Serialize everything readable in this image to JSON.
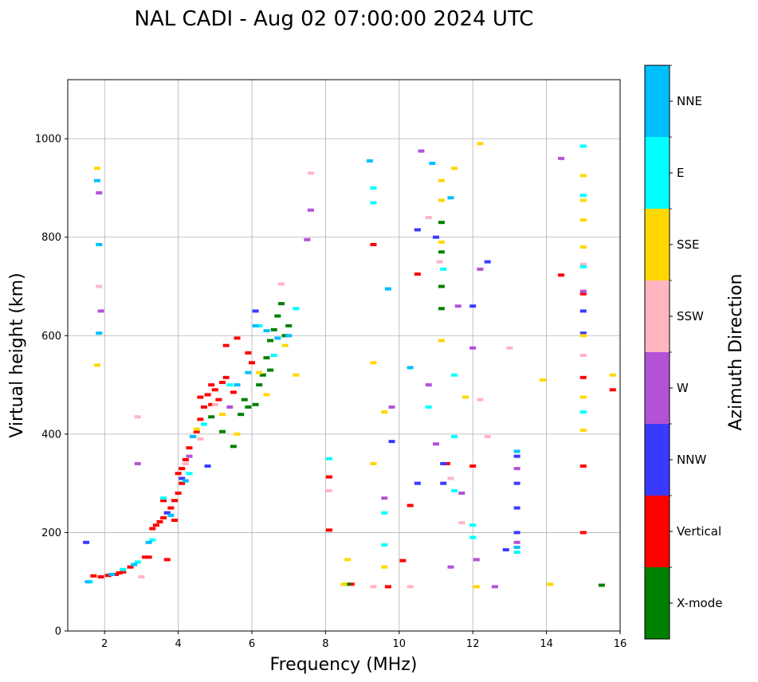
{
  "chart_data": {
    "type": "scatter",
    "title": "NAL CADI - Aug 02 07:00:00 2024 UTC",
    "xlabel": "Frequency (MHz)",
    "ylabel": "Virtual height (km)",
    "xlim": [
      1.0,
      16.0
    ],
    "ylim": [
      0,
      1120
    ],
    "xticks": [
      2,
      4,
      6,
      8,
      10,
      12,
      14,
      16
    ],
    "yticks": [
      0,
      200,
      400,
      600,
      800,
      1000
    ],
    "grid": true,
    "colorbar": {
      "label": "Azimuth Direction",
      "categories": [
        {
          "name": "X-mode",
          "color": "#008000"
        },
        {
          "name": "Vertical",
          "color": "#ff0000"
        },
        {
          "name": "NNW",
          "color": "#3a3aff"
        },
        {
          "name": "W",
          "color": "#b452d6"
        },
        {
          "name": "SSW",
          "color": "#ffb6c1"
        },
        {
          "name": "SSE",
          "color": "#ffd700"
        },
        {
          "name": "E",
          "color": "#00ffff"
        },
        {
          "name": "NNE",
          "color": "#00bfff"
        }
      ]
    },
    "series": [
      {
        "name": "Vertical",
        "color": "#ff0000",
        "points": [
          [
            1.7,
            112
          ],
          [
            1.9,
            110
          ],
          [
            2.1,
            113
          ],
          [
            2.3,
            115
          ],
          [
            2.4,
            118
          ],
          [
            2.5,
            120
          ],
          [
            2.7,
            130
          ],
          [
            3.1,
            150
          ],
          [
            3.2,
            150
          ],
          [
            3.3,
            208
          ],
          [
            3.4,
            215
          ],
          [
            3.5,
            222
          ],
          [
            3.6,
            230
          ],
          [
            3.7,
            240
          ],
          [
            3.8,
            250
          ],
          [
            3.9,
            265
          ],
          [
            4.0,
            280
          ],
          [
            4.1,
            300
          ],
          [
            3.6,
            265
          ],
          [
            4.0,
            320
          ],
          [
            4.1,
            330
          ],
          [
            4.2,
            348
          ],
          [
            4.3,
            372
          ],
          [
            4.5,
            405
          ],
          [
            4.6,
            430
          ],
          [
            4.7,
            455
          ],
          [
            4.8,
            480
          ],
          [
            4.9,
            500
          ],
          [
            5.0,
            490
          ],
          [
            5.1,
            470
          ],
          [
            5.2,
            505
          ],
          [
            5.3,
            515
          ],
          [
            4.4,
            395
          ],
          [
            4.6,
            475
          ],
          [
            4.9,
            460
          ],
          [
            5.3,
            580
          ],
          [
            5.5,
            485
          ],
          [
            5.6,
            595
          ],
          [
            5.9,
            565
          ],
          [
            6.0,
            545
          ],
          [
            3.9,
            225
          ],
          [
            3.7,
            145
          ],
          [
            8.1,
            313
          ],
          [
            8.1,
            205
          ],
          [
            8.7,
            95
          ],
          [
            9.3,
            785
          ],
          [
            9.7,
            90
          ],
          [
            10.1,
            143
          ],
          [
            10.3,
            255
          ],
          [
            10.5,
            725
          ],
          [
            11.3,
            340
          ],
          [
            12.0,
            335
          ],
          [
            14.4,
            723
          ],
          [
            15.0,
            685
          ],
          [
            15.0,
            515
          ],
          [
            15.0,
            335
          ],
          [
            15.0,
            200
          ],
          [
            15.8,
            490
          ]
        ]
      },
      {
        "name": "X-mode",
        "color": "#008000",
        "points": [
          [
            4.9,
            435
          ],
          [
            5.2,
            405
          ],
          [
            5.5,
            375
          ],
          [
            5.7,
            440
          ],
          [
            5.8,
            470
          ],
          [
            5.9,
            455
          ],
          [
            6.1,
            460
          ],
          [
            6.3,
            520
          ],
          [
            6.4,
            555
          ],
          [
            6.5,
            590
          ],
          [
            6.6,
            612
          ],
          [
            6.7,
            640
          ],
          [
            6.8,
            665
          ],
          [
            6.9,
            600
          ],
          [
            6.2,
            500
          ],
          [
            6.5,
            530
          ],
          [
            7.0,
            620
          ],
          [
            11.15,
            655
          ],
          [
            11.15,
            700
          ],
          [
            11.15,
            770
          ],
          [
            11.15,
            830
          ],
          [
            8.6,
            95
          ],
          [
            15.5,
            93
          ]
        ]
      },
      {
        "name": "NNW",
        "color": "#3a3aff",
        "points": [
          [
            1.5,
            180
          ],
          [
            3.7,
            240
          ],
          [
            4.1,
            310
          ],
          [
            4.8,
            335
          ],
          [
            6.1,
            650
          ],
          [
            9.8,
            385
          ],
          [
            10.5,
            815
          ],
          [
            10.5,
            300
          ],
          [
            11.0,
            800
          ],
          [
            11.2,
            340
          ],
          [
            11.2,
            300
          ],
          [
            12.0,
            660
          ],
          [
            12.4,
            750
          ],
          [
            12.9,
            165
          ],
          [
            13.2,
            355
          ],
          [
            13.2,
            300
          ],
          [
            13.2,
            250
          ],
          [
            13.2,
            200
          ],
          [
            15.0,
            605
          ],
          [
            15.0,
            650
          ]
        ]
      },
      {
        "name": "W",
        "color": "#b452d6",
        "points": [
          [
            1.85,
            890
          ],
          [
            1.9,
            650
          ],
          [
            2.9,
            340
          ],
          [
            4.3,
            355
          ],
          [
            5.4,
            455
          ],
          [
            7.5,
            795
          ],
          [
            7.6,
            855
          ],
          [
            9.6,
            270
          ],
          [
            9.8,
            455
          ],
          [
            10.6,
            975
          ],
          [
            10.8,
            500
          ],
          [
            11.0,
            380
          ],
          [
            11.4,
            130
          ],
          [
            11.6,
            660
          ],
          [
            11.7,
            280
          ],
          [
            12.0,
            575
          ],
          [
            12.1,
            145
          ],
          [
            12.2,
            735
          ],
          [
            12.6,
            90
          ],
          [
            13.2,
            330
          ],
          [
            13.2,
            180
          ],
          [
            14.4,
            960
          ],
          [
            15.0,
            690
          ]
        ]
      },
      {
        "name": "SSW",
        "color": "#ffb6c1",
        "points": [
          [
            1.85,
            700
          ],
          [
            2.9,
            435
          ],
          [
            3.0,
            110
          ],
          [
            4.2,
            340
          ],
          [
            4.6,
            390
          ],
          [
            5.0,
            460
          ],
          [
            6.8,
            705
          ],
          [
            7.6,
            930
          ],
          [
            8.1,
            285
          ],
          [
            9.3,
            90
          ],
          [
            10.3,
            90
          ],
          [
            10.8,
            840
          ],
          [
            11.1,
            750
          ],
          [
            11.4,
            310
          ],
          [
            11.7,
            220
          ],
          [
            12.2,
            470
          ],
          [
            12.4,
            395
          ],
          [
            13.0,
            575
          ],
          [
            15.0,
            745
          ],
          [
            15.0,
            560
          ]
        ]
      },
      {
        "name": "SSE",
        "color": "#ffd700",
        "points": [
          [
            1.8,
            940
          ],
          [
            1.8,
            540
          ],
          [
            4.5,
            410
          ],
          [
            5.2,
            440
          ],
          [
            5.6,
            400
          ],
          [
            6.2,
            525
          ],
          [
            6.4,
            480
          ],
          [
            6.9,
            580
          ],
          [
            7.2,
            520
          ],
          [
            8.6,
            145
          ],
          [
            8.5,
            95
          ],
          [
            9.3,
            545
          ],
          [
            9.3,
            340
          ],
          [
            9.6,
            445
          ],
          [
            9.6,
            130
          ],
          [
            11.15,
            915
          ],
          [
            11.15,
            875
          ],
          [
            11.15,
            790
          ],
          [
            11.15,
            590
          ],
          [
            11.5,
            940
          ],
          [
            11.8,
            475
          ],
          [
            12.1,
            90
          ],
          [
            12.2,
            990
          ],
          [
            13.9,
            510
          ],
          [
            14.1,
            95
          ],
          [
            15.0,
            925
          ],
          [
            15.0,
            875
          ],
          [
            15.0,
            835
          ],
          [
            15.0,
            780
          ],
          [
            15.0,
            600
          ],
          [
            15.0,
            475
          ],
          [
            15.0,
            408
          ],
          [
            15.8,
            520
          ]
        ]
      },
      {
        "name": "E",
        "color": "#00ffff",
        "points": [
          [
            1.6,
            100
          ],
          [
            2.5,
            125
          ],
          [
            2.9,
            140
          ],
          [
            3.3,
            185
          ],
          [
            3.6,
            270
          ],
          [
            4.3,
            320
          ],
          [
            4.7,
            420
          ],
          [
            5.4,
            500
          ],
          [
            6.2,
            620
          ],
          [
            6.6,
            560
          ],
          [
            7.2,
            655
          ],
          [
            8.1,
            350
          ],
          [
            9.3,
            900
          ],
          [
            9.3,
            870
          ],
          [
            9.6,
            240
          ],
          [
            9.6,
            175
          ],
          [
            10.8,
            455
          ],
          [
            11.2,
            735
          ],
          [
            11.5,
            520
          ],
          [
            11.5,
            395
          ],
          [
            11.5,
            285
          ],
          [
            12.0,
            215
          ],
          [
            12.0,
            190
          ],
          [
            13.2,
            160
          ],
          [
            15.0,
            985
          ],
          [
            15.0,
            885
          ],
          [
            15.0,
            740
          ],
          [
            15.0,
            445
          ]
        ]
      },
      {
        "name": "NNE",
        "color": "#00bfff",
        "points": [
          [
            1.8,
            915
          ],
          [
            1.85,
            785
          ],
          [
            1.85,
            605
          ],
          [
            1.55,
            100
          ],
          [
            2.2,
            115
          ],
          [
            2.8,
            135
          ],
          [
            3.2,
            180
          ],
          [
            3.8,
            235
          ],
          [
            4.2,
            305
          ],
          [
            4.4,
            395
          ],
          [
            5.6,
            500
          ],
          [
            5.9,
            525
          ],
          [
            6.1,
            620
          ],
          [
            6.4,
            610
          ],
          [
            6.7,
            595
          ],
          [
            7.0,
            600
          ],
          [
            9.2,
            955
          ],
          [
            9.7,
            695
          ],
          [
            10.3,
            535
          ],
          [
            10.9,
            950
          ],
          [
            11.4,
            880
          ],
          [
            13.2,
            365
          ],
          [
            13.2,
            170
          ]
        ]
      }
    ]
  }
}
